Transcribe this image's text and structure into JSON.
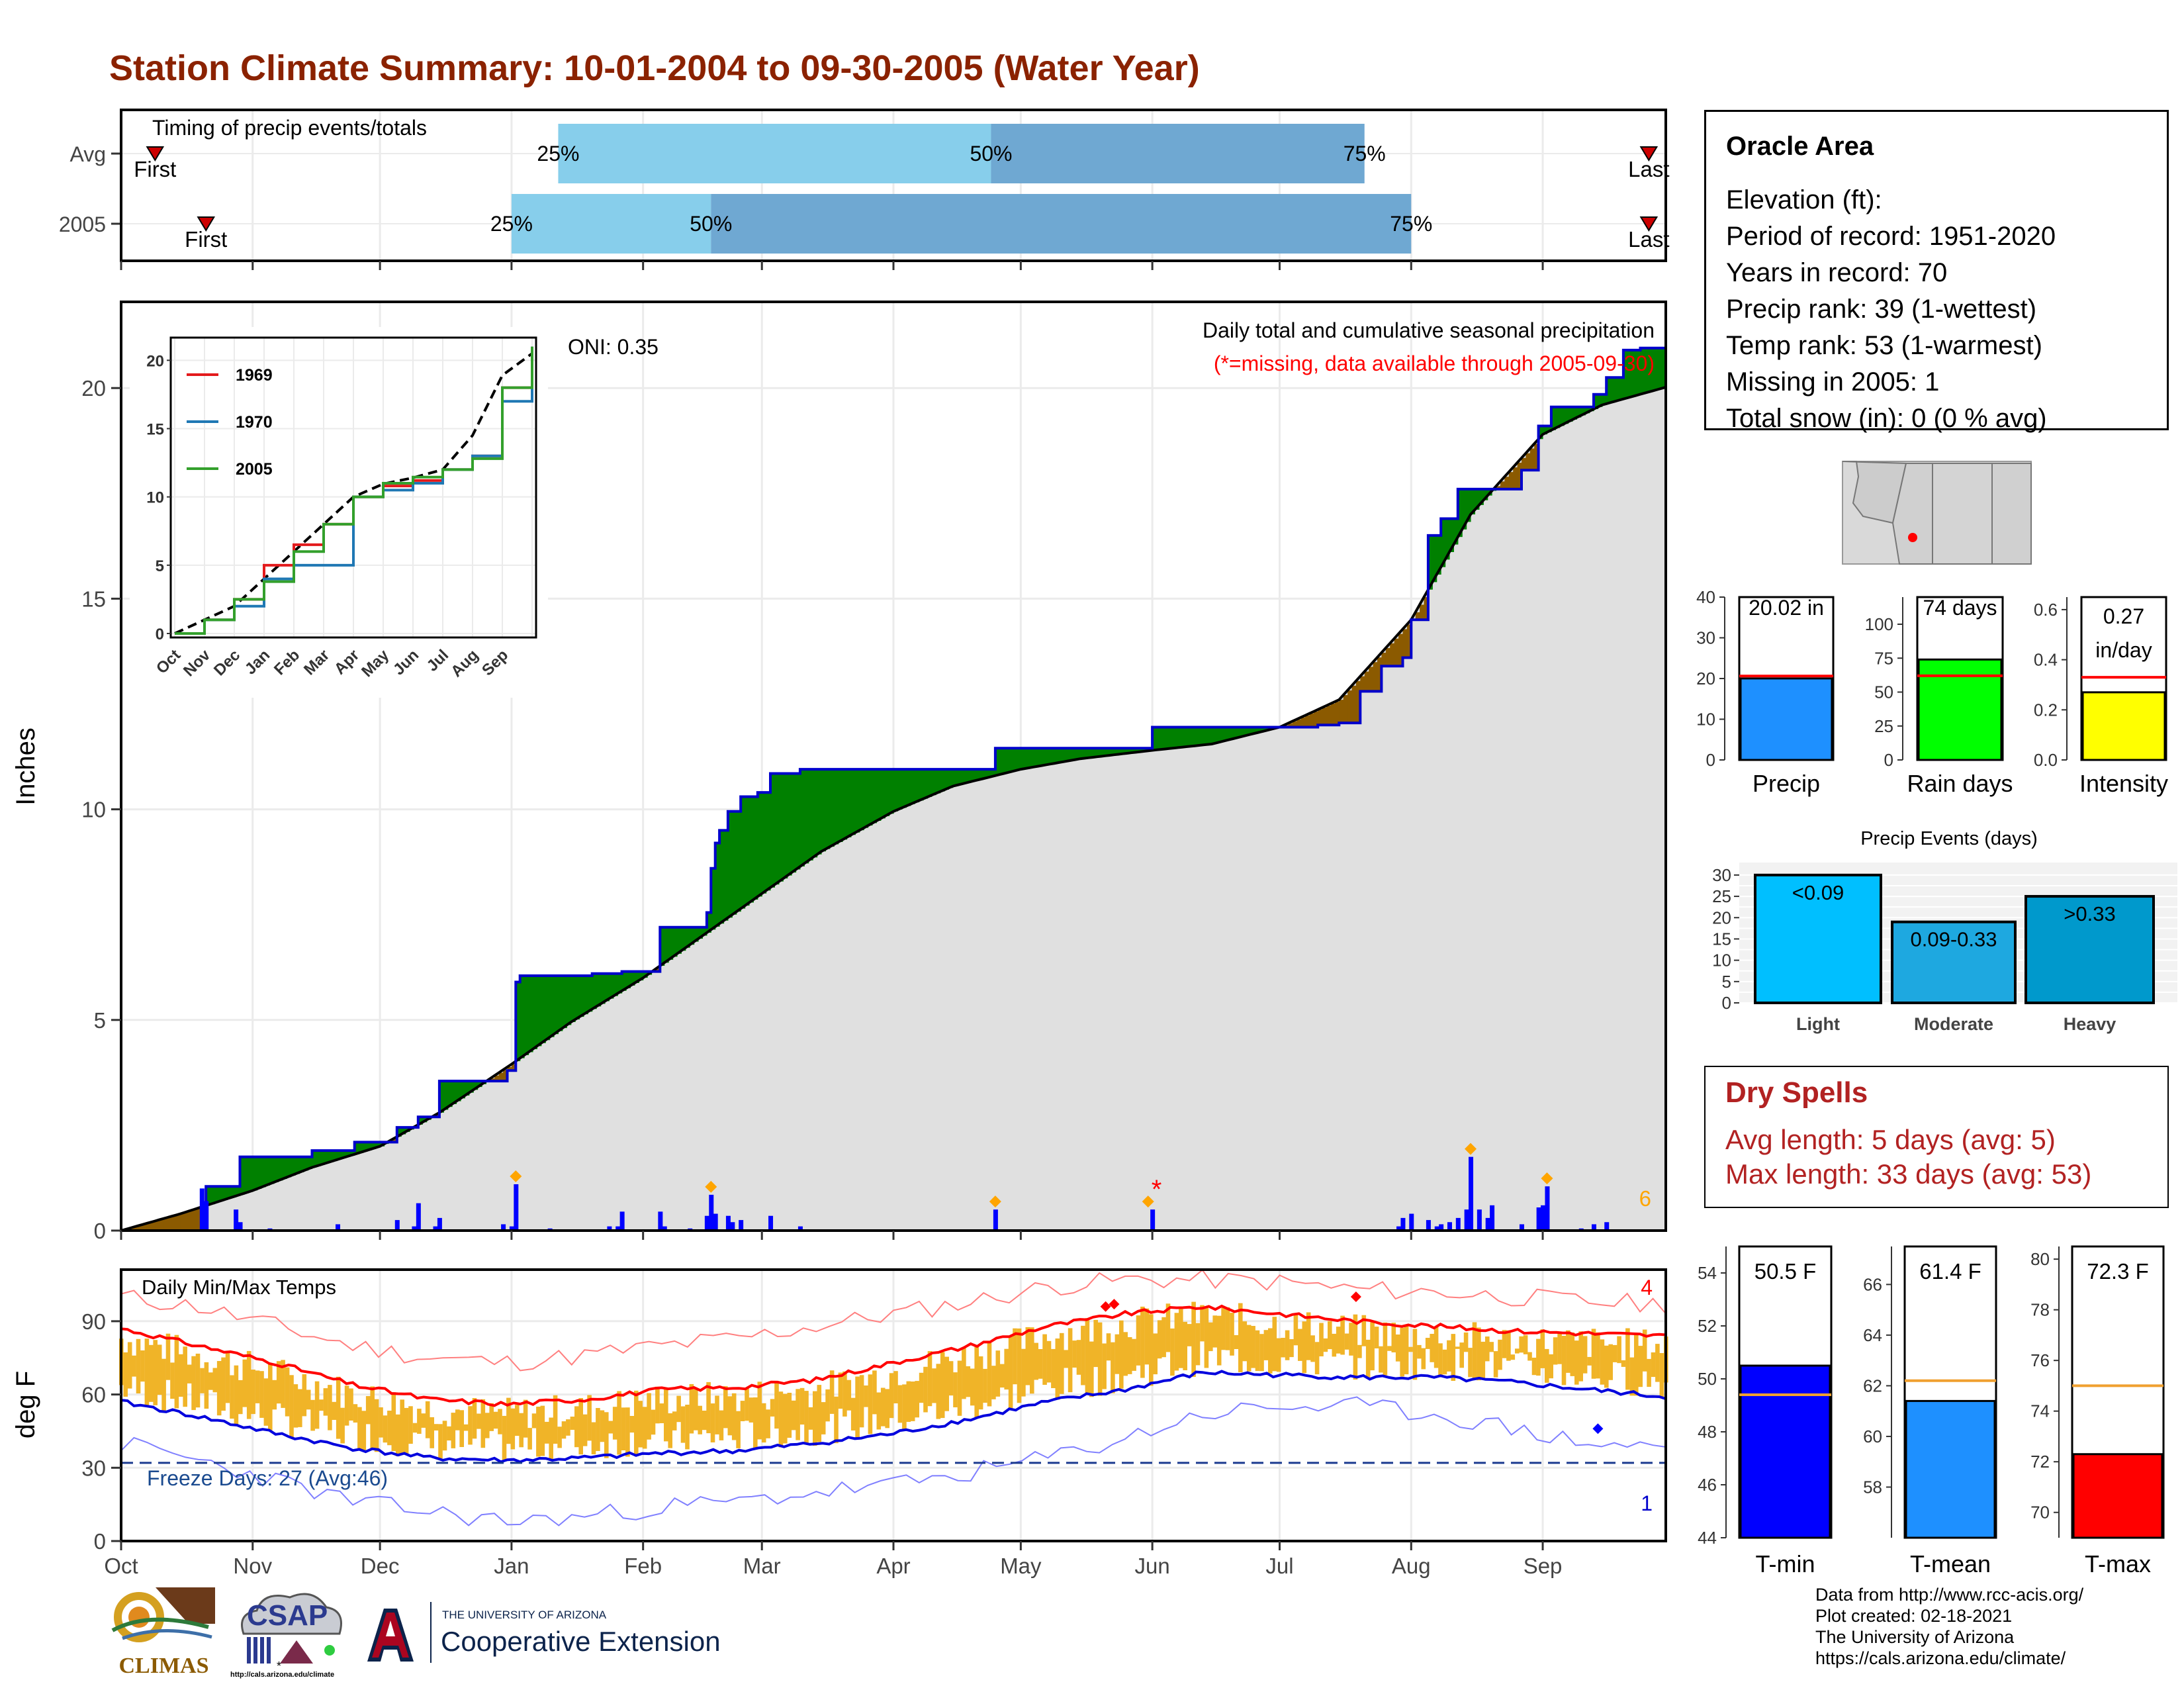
{
  "title": "Station Climate Summary: 10-01-2004 to 09-30-2005 (Water Year)",
  "timing_panel": {
    "label": "Timing of precip events/totals",
    "rows": [
      {
        "name": "Avg",
        "first": "2004-10-09",
        "p25": "2005-01-12",
        "p50": "2005-04-24",
        "p75": "2005-07-21",
        "last": "2005-09-26"
      },
      {
        "name": "2005",
        "first": "2004-10-21",
        "p25": "2005-01-01",
        "p50": "2005-02-17",
        "p75": "2005-08-01",
        "last": "2005-09-26"
      }
    ],
    "labels": {
      "first": "First",
      "last": "Last",
      "p25": "25%",
      "p50": "50%",
      "p75": "75%"
    },
    "colors": {
      "light": "#87ceeb",
      "dark": "#6fa8d2",
      "marker": "#cc0000"
    }
  },
  "precip_panel": {
    "ylabel": "Inches",
    "yticks": [
      "0",
      "5",
      "10",
      "15",
      "20"
    ],
    "title": "Daily total and cumulative seasonal precipitation",
    "subtitle": "(*=missing, data available through 2005-09-30)",
    "oni": "ONI: 0.35",
    "missing_marker": "*",
    "count_label": "6",
    "colors": {
      "above": "#008000",
      "below": "#8b5a00",
      "fill": "#e0e0e0",
      "daily": "#0000ff",
      "extreme": "#ffa500"
    },
    "legend": [
      "1969",
      "1970",
      "2005"
    ],
    "inset_xticks": [
      "Oct",
      "Nov",
      "Dec",
      "Jan",
      "Feb",
      "Mar",
      "Apr",
      "May",
      "Jun",
      "Jul",
      "Aug",
      "Sep"
    ],
    "inset_yticks": [
      "0",
      "5",
      "10",
      "15",
      "20"
    ]
  },
  "temp_panel": {
    "ylabel": "deg F",
    "label": "Daily Min/Max Temps",
    "freeze": "Freeze Days: 27 (Avg:46)",
    "count_high": "4",
    "count_low": "1",
    "yticks": [
      "0",
      "30",
      "60",
      "90"
    ],
    "xticks": [
      "Oct",
      "Nov",
      "Dec",
      "Jan",
      "Feb",
      "Mar",
      "Apr",
      "May",
      "Jun",
      "Jul",
      "Aug",
      "Sep"
    ]
  },
  "info_box": {
    "station": "Oracle Area",
    "lines": [
      "Elevation (ft):",
      "Period of record: 1951-2020",
      "Years in record: 70",
      "Precip rank: 39 (1-wettest)",
      "Temp rank: 53 (1-warmest)",
      "Missing in 2005: 1",
      "Total snow (in): 0 (0 % avg)"
    ]
  },
  "precip_bars": [
    {
      "label": "Precip",
      "value_label": "20.02 in",
      "value": 20.02,
      "avg": 20.6,
      "ymax": 40,
      "ticks": [
        "0",
        "10",
        "20",
        "30",
        "40"
      ],
      "color": "#1e90ff"
    },
    {
      "label": "Rain days",
      "value_label": "74 days",
      "value": 74,
      "avg": 62,
      "ymax": 120,
      "ticks": [
        "0",
        "25",
        "50",
        "75",
        "100"
      ],
      "color": "#00ff00"
    },
    {
      "label": "Intensity",
      "value_label": "0.27 in/day",
      "value_line1": "0.27",
      "value_line2": "in/day",
      "value": 0.27,
      "avg": 0.33,
      "ymax": 0.65,
      "ticks": [
        "0.0",
        "0.2",
        "0.4",
        "0.6"
      ],
      "color": "#ffff00"
    }
  ],
  "events_chart": {
    "title": "Precip Events (days)",
    "categories": [
      "Light",
      "Moderate",
      "Heavy"
    ],
    "bar_labels": [
      "<0.09",
      "0.09-0.33",
      ">0.33"
    ],
    "values": [
      30,
      19,
      25
    ],
    "ymax": 32,
    "yticks": [
      "0",
      "5",
      "10",
      "15",
      "20",
      "25",
      "30"
    ],
    "colors": [
      "#00bfff",
      "#1ea8e0",
      "#0099cc"
    ]
  },
  "dry_spells": {
    "title": "Dry Spells",
    "avg_line": "Avg length: 5 days (avg: 5)",
    "max_line": "Max length: 33 days (avg: 53)"
  },
  "temp_bars": [
    {
      "label": "T-min",
      "value_label": "50.5 F",
      "value": 50.5,
      "avg": 49.4,
      "ymin": 44,
      "ymax": 55,
      "ticks": [
        "44",
        "46",
        "48",
        "50",
        "52",
        "54"
      ],
      "color": "#0000ff"
    },
    {
      "label": "T-mean",
      "value_label": "61.4 F",
      "value": 61.4,
      "avg": 62.2,
      "ymin": 56,
      "ymax": 67.5,
      "ticks": [
        "58",
        "60",
        "62",
        "64",
        "66"
      ],
      "color": "#1e90ff"
    },
    {
      "label": "T-max",
      "value_label": "72.3 F",
      "value": 72.3,
      "avg": 75.0,
      "ymin": 69,
      "ymax": 80.5,
      "ticks": [
        "70",
        "72",
        "74",
        "76",
        "78",
        "80"
      ],
      "color": "#ff0000"
    }
  ],
  "credits": [
    "Data from http://www.rcc-acis.org/",
    "Plot created: 02-18-2021",
    "The University of Arizona",
    "https://cals.arizona.edu/climate/"
  ],
  "logos": {
    "climas": "CLIMAS",
    "csap": "CSAP",
    "csap_url": "http://cals.arizona.edu/climate",
    "ua_small": "THE UNIVERSITY OF ARIZONA",
    "ua_large": "Cooperative Extension",
    "ua_letter": "A"
  },
  "chart_data": [
    {
      "type": "bar",
      "name": "timing",
      "categories": [
        "Avg",
        "2005"
      ],
      "series": [
        {
          "name": "First",
          "values": [
            "2004-10-09",
            "2004-10-21"
          ]
        },
        {
          "name": "25%",
          "values": [
            "2005-01-12",
            "2005-01-01"
          ]
        },
        {
          "name": "50%",
          "values": [
            "2005-04-24",
            "2005-02-17"
          ]
        },
        {
          "name": "75%",
          "values": [
            "2005-07-21",
            "2005-08-01"
          ]
        },
        {
          "name": "Last",
          "values": [
            "2005-09-26",
            "2005-09-26"
          ]
        }
      ]
    },
    {
      "type": "area",
      "name": "cumulative precipitation",
      "ylabel": "Inches",
      "ylim": [
        0,
        22
      ],
      "x_months": [
        "Oct",
        "Nov",
        "Dec",
        "Jan",
        "Feb",
        "Mar",
        "Apr",
        "May",
        "Jun",
        "Jul",
        "Aug",
        "Sep"
      ],
      "series": [
        {
          "name": "2005",
          "points": [
            [
              "2004-10-01",
              0
            ],
            [
              "2004-10-21",
              1.05
            ],
            [
              "2004-10-29",
              1.75
            ],
            [
              "2004-11-15",
              1.9
            ],
            [
              "2004-11-25",
              2.1
            ],
            [
              "2004-12-05",
              2.45
            ],
            [
              "2004-12-10",
              2.7
            ],
            [
              "2004-12-15",
              3.55
            ],
            [
              "2004-12-25",
              3.55
            ],
            [
              "2004-12-31",
              3.8
            ],
            [
              "2005-01-02",
              5.9
            ],
            [
              "2005-01-03",
              6.05
            ],
            [
              "2005-01-10",
              6.05
            ],
            [
              "2005-01-20",
              6.1
            ],
            [
              "2005-01-27",
              6.15
            ],
            [
              "2005-02-05",
              7.2
            ],
            [
              "2005-02-15",
              7.2
            ],
            [
              "2005-02-16",
              7.55
            ],
            [
              "2005-02-17",
              8.6
            ],
            [
              "2005-02-18",
              9.2
            ],
            [
              "2005-02-19",
              9.5
            ],
            [
              "2005-02-21",
              9.95
            ],
            [
              "2005-02-24",
              10.3
            ],
            [
              "2005-02-28",
              10.4
            ],
            [
              "2005-03-03",
              10.85
            ],
            [
              "2005-03-10",
              10.95
            ],
            [
              "2005-03-31",
              10.95
            ],
            [
              "2005-04-24",
              10.95
            ],
            [
              "2005-04-25",
              11.45
            ],
            [
              "2005-05-31",
              11.45
            ],
            [
              "2005-06-01",
              11.95
            ],
            [
              "2005-07-02",
              11.95
            ],
            [
              "2005-07-10",
              12.0
            ],
            [
              "2005-07-15",
              12.05
            ],
            [
              "2005-07-20",
              12.8
            ],
            [
              "2005-07-25",
              13.4
            ],
            [
              "2005-07-30",
              13.6
            ],
            [
              "2005-08-01",
              14.5
            ],
            [
              "2005-08-05",
              16.5
            ],
            [
              "2005-08-08",
              16.9
            ],
            [
              "2005-08-12",
              17.6
            ],
            [
              "2005-08-20",
              17.6
            ],
            [
              "2005-08-27",
              18.05
            ],
            [
              "2005-08-31",
              19.1
            ],
            [
              "2005-09-03",
              19.55
            ],
            [
              "2005-09-13",
              19.85
            ],
            [
              "2005-09-16",
              20.25
            ],
            [
              "2005-09-20",
              20.9
            ],
            [
              "2005-09-24",
              20.95
            ],
            [
              "2005-09-30",
              20.02
            ]
          ]
        },
        {
          "name": "Avg",
          "points": [
            [
              "2004-10-01",
              0
            ],
            [
              "2004-10-15",
              0.4
            ],
            [
              "2004-11-01",
              0.95
            ],
            [
              "2004-11-15",
              1.5
            ],
            [
              "2004-12-01",
              2.0
            ],
            [
              "2004-12-15",
              2.8
            ],
            [
              "2005-01-01",
              3.95
            ],
            [
              "2005-01-15",
              4.95
            ],
            [
              "2005-02-01",
              6.0
            ],
            [
              "2005-02-15",
              7.0
            ],
            [
              "2005-03-01",
              8.0
            ],
            [
              "2005-03-15",
              9.0
            ],
            [
              "2005-04-01",
              9.95
            ],
            [
              "2005-04-15",
              10.55
            ],
            [
              "2005-05-01",
              10.95
            ],
            [
              "2005-05-15",
              11.2
            ],
            [
              "2005-06-01",
              11.4
            ],
            [
              "2005-06-15",
              11.55
            ],
            [
              "2005-07-01",
              11.95
            ],
            [
              "2005-07-15",
              12.6
            ],
            [
              "2005-08-01",
              14.5
            ],
            [
              "2005-08-15",
              17.0
            ],
            [
              "2005-09-01",
              18.9
            ],
            [
              "2005-09-15",
              19.6
            ],
            [
              "2005-09-30",
              20.02
            ]
          ]
        }
      ],
      "daily_bars": [
        [
          "2004-10-20",
          1.0
        ],
        [
          "2004-10-21",
          0.7
        ],
        [
          "2004-10-28",
          0.5
        ],
        [
          "2004-10-29",
          0.2
        ],
        [
          "2004-11-05",
          0.05
        ],
        [
          "2004-11-21",
          0.15
        ],
        [
          "2004-12-05",
          0.25
        ],
        [
          "2004-12-09",
          0.1
        ],
        [
          "2004-12-10",
          0.65
        ],
        [
          "2004-12-14",
          0.1
        ],
        [
          "2004-12-15",
          0.3
        ],
        [
          "2004-12-30",
          0.15
        ],
        [
          "2005-01-01",
          0.1
        ],
        [
          "2005-01-02",
          1.1
        ],
        [
          "2005-01-10",
          0.05
        ],
        [
          "2005-01-24",
          0.1
        ],
        [
          "2005-01-26",
          0.1
        ],
        [
          "2005-01-27",
          0.45
        ],
        [
          "2005-02-05",
          0.45
        ],
        [
          "2005-02-06",
          0.1
        ],
        [
          "2005-02-12",
          0.05
        ],
        [
          "2005-02-16",
          0.35
        ],
        [
          "2005-02-17",
          0.85
        ],
        [
          "2005-02-18",
          0.4
        ],
        [
          "2005-02-21",
          0.35
        ],
        [
          "2005-02-22",
          0.2
        ],
        [
          "2005-02-24",
          0.25
        ],
        [
          "2005-03-03",
          0.35
        ],
        [
          "2005-03-10",
          0.1
        ],
        [
          "2005-04-25",
          0.5
        ],
        [
          "2005-06-01",
          0.5
        ],
        [
          "2005-07-29",
          0.1
        ],
        [
          "2005-07-30",
          0.3
        ],
        [
          "2005-08-01",
          0.4
        ],
        [
          "2005-08-05",
          0.25
        ],
        [
          "2005-08-07",
          0.1
        ],
        [
          "2005-08-08",
          0.15
        ],
        [
          "2005-08-10",
          0.2
        ],
        [
          "2005-08-12",
          0.3
        ],
        [
          "2005-08-14",
          0.5
        ],
        [
          "2005-08-15",
          1.75
        ],
        [
          "2005-08-17",
          0.5
        ],
        [
          "2005-08-19",
          0.3
        ],
        [
          "2005-08-20",
          0.6
        ],
        [
          "2005-08-27",
          0.15
        ],
        [
          "2005-08-31",
          0.55
        ],
        [
          "2005-09-01",
          0.6
        ],
        [
          "2005-09-02",
          1.05
        ],
        [
          "2005-09-10",
          0.05
        ],
        [
          "2005-09-13",
          0.15
        ],
        [
          "2005-09-16",
          0.2
        ]
      ]
    },
    {
      "type": "line",
      "name": "inset cumulative precip",
      "ylim": [
        0,
        21
      ],
      "series": [
        {
          "name": "1969",
          "values": [
            0,
            1,
            2.5,
            5,
            6.5,
            8,
            10,
            10.8,
            11.2,
            12,
            13,
            18,
            21
          ]
        },
        {
          "name": "1970",
          "values": [
            0,
            1,
            2,
            4,
            5,
            5,
            10,
            10.5,
            11,
            12,
            13,
            17,
            21
          ]
        },
        {
          "name": "2005",
          "values": [
            0,
            1,
            2.5,
            3.8,
            6,
            8,
            10,
            11,
            11.45,
            12,
            12.8,
            18,
            21
          ]
        }
      ]
    },
    {
      "type": "line",
      "name": "daily temperatures",
      "ylabel": "deg F",
      "ylim": [
        0,
        110
      ],
      "series": [
        {
          "name": "avg max",
          "values": [
            87,
            80,
            73,
            64,
            58,
            56,
            58,
            62,
            63,
            66,
            73,
            80,
            88,
            93,
            96,
            93,
            90,
            88,
            86,
            85,
            84
          ]
        },
        {
          "name": "avg min",
          "values": [
            57,
            51,
            44,
            38,
            34,
            33,
            34,
            36,
            37,
            40,
            44,
            50,
            57,
            62,
            69,
            68,
            67,
            67,
            65,
            62,
            59
          ]
        },
        {
          "name": "record max",
          "values": [
            100,
            96,
            88,
            80,
            75,
            73,
            76,
            80,
            83,
            88,
            93,
            98,
            104,
            107,
            107,
            106,
            103,
            102,
            100,
            98,
            97
          ]
        },
        {
          "name": "record min",
          "values": [
            40,
            33,
            25,
            16,
            12,
            8,
            10,
            14,
            16,
            20,
            23,
            28,
            34,
            42,
            52,
            55,
            55,
            52,
            46,
            40,
            38
          ]
        }
      ],
      "freeze_threshold": 32
    },
    {
      "type": "bar",
      "name": "precip events",
      "categories": [
        "Light",
        "Moderate",
        "Heavy"
      ],
      "values": [
        30,
        19,
        25
      ]
    },
    {
      "type": "bar",
      "name": "seasonal totals",
      "categories": [
        "Precip",
        "Rain days",
        "Intensity"
      ],
      "values": [
        20.02,
        74,
        0.27
      ]
    },
    {
      "type": "bar",
      "name": "seasonal temperatures",
      "categories": [
        "T-min",
        "T-mean",
        "T-max"
      ],
      "values": [
        50.5,
        61.4,
        72.3
      ]
    }
  ]
}
